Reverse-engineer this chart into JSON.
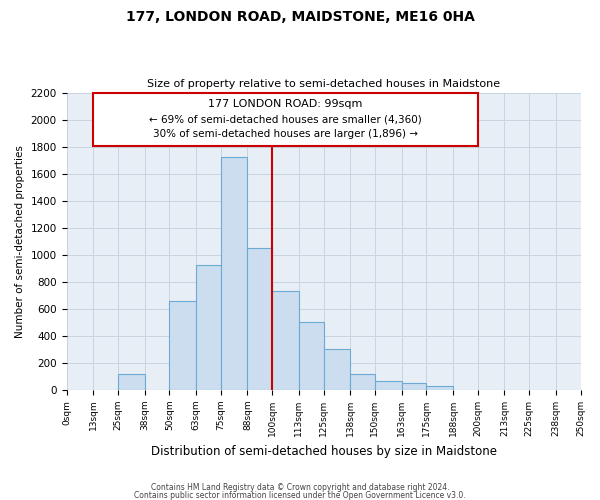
{
  "title": "177, LONDON ROAD, MAIDSTONE, ME16 0HA",
  "subtitle": "Size of property relative to semi-detached houses in Maidstone",
  "xlabel": "Distribution of semi-detached houses by size in Maidstone",
  "ylabel": "Number of semi-detached properties",
  "footer1": "Contains HM Land Registry data © Crown copyright and database right 2024.",
  "footer2": "Contains public sector information licensed under the Open Government Licence v3.0.",
  "bar_color": "#ccddf0",
  "bar_edge_color": "#6aaad4",
  "grid_color": "#c8d4e0",
  "background_color": "#e8eef5",
  "annotation_box_color": "#cc0000",
  "property_line_color": "#cc0000",
  "bin_labels": [
    "0sqm",
    "13sqm",
    "25sqm",
    "38sqm",
    "50sqm",
    "63sqm",
    "75sqm",
    "88sqm",
    "100sqm",
    "113sqm",
    "125sqm",
    "138sqm",
    "150sqm",
    "163sqm",
    "175sqm",
    "188sqm",
    "200sqm",
    "213sqm",
    "225sqm",
    "238sqm",
    "250sqm"
  ],
  "bin_edges": [
    0,
    13,
    25,
    38,
    50,
    63,
    75,
    88,
    100,
    113,
    125,
    138,
    150,
    163,
    175,
    188,
    200,
    213,
    225,
    238,
    250
  ],
  "bar_heights": [
    0,
    0,
    120,
    0,
    660,
    925,
    1720,
    1050,
    730,
    500,
    305,
    120,
    70,
    50,
    30,
    0,
    0,
    0,
    0,
    0
  ],
  "property_value": 99,
  "property_label": "177 LONDON ROAD: 99sqm",
  "smaller_pct": 69,
  "smaller_count": 4360,
  "larger_pct": 30,
  "larger_count": 1896,
  "ylim": [
    0,
    2200
  ],
  "yticks": [
    0,
    200,
    400,
    600,
    800,
    1000,
    1200,
    1400,
    1600,
    1800,
    2000,
    2200
  ]
}
